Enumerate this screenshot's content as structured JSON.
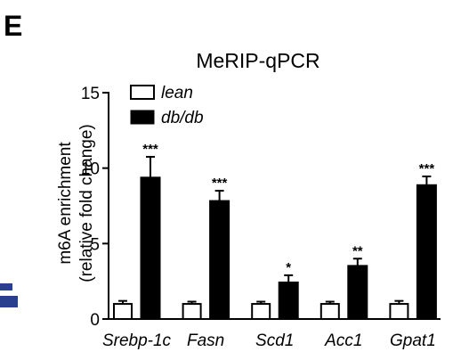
{
  "panel_label": "E",
  "chart_data": {
    "type": "bar",
    "title": "MeRIP-qPCR",
    "ylabel_line1": "m6A enrichment",
    "ylabel_line2": "(relative fold change)",
    "xlabel": "",
    "ylim": [
      0,
      15
    ],
    "yticks": [
      0,
      5,
      10,
      15
    ],
    "categories": [
      "Srebp-1c",
      "Fasn",
      "Scd1",
      "Acc1",
      "Gpat1"
    ],
    "series": [
      {
        "name": "lean",
        "fill": "#ffffff",
        "stroke": "#000000",
        "values": [
          1.0,
          1.0,
          1.0,
          1.0,
          1.0
        ],
        "errors": [
          0.2,
          0.15,
          0.15,
          0.15,
          0.2
        ]
      },
      {
        "name": "db/db",
        "fill": "#000000",
        "stroke": "#000000",
        "values": [
          9.4,
          7.85,
          2.45,
          3.55,
          8.9
        ],
        "errors": [
          1.35,
          0.65,
          0.45,
          0.45,
          0.55
        ]
      }
    ],
    "significance": [
      "***",
      "***",
      "*",
      "**",
      "***"
    ],
    "legend_position": "top-left",
    "grid": false
  },
  "colors": {
    "accent": "#2b3f8f"
  }
}
